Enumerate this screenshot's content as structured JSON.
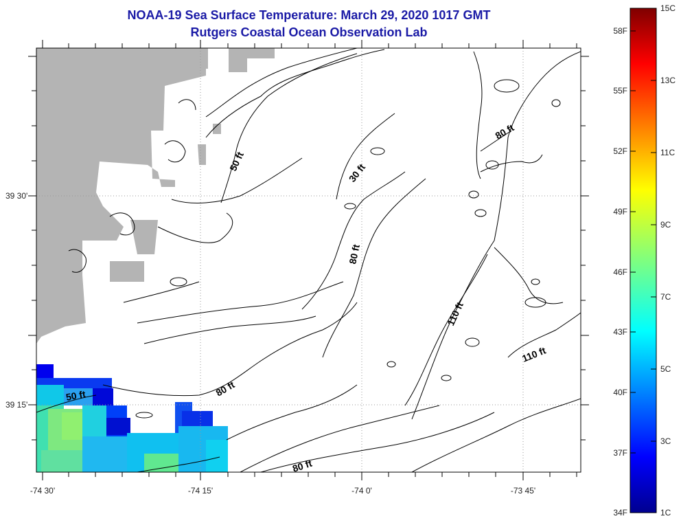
{
  "title": "NOAA-19 Sea Surface Temperature:  March 29, 2020 1017 GMT",
  "subtitle": "Rutgers Coastal Ocean Observation Lab",
  "axes": {
    "lat_labels": [
      "39 30'",
      "39 15'"
    ],
    "lon_labels": [
      "-74 30'",
      "-74 15'",
      "-74 0'",
      "-73 45'"
    ]
  },
  "contours": {
    "labels": [
      "50 ft",
      "30 ft",
      "80 ft",
      "80 ft",
      "110 ft",
      "110 ft",
      "80 ft",
      "50 ft",
      "80 ft"
    ]
  },
  "colorbar": {
    "fahrenheit": [
      "58F",
      "55F",
      "52F",
      "49F",
      "46F",
      "43F",
      "40F",
      "37F",
      "34F"
    ],
    "celsius": [
      "15C",
      "13C",
      "11C",
      "9C",
      "7C",
      "5C",
      "3C",
      "1C"
    ]
  },
  "colors": {
    "land": "#b4b4b4",
    "title": "#1a1aa6"
  }
}
